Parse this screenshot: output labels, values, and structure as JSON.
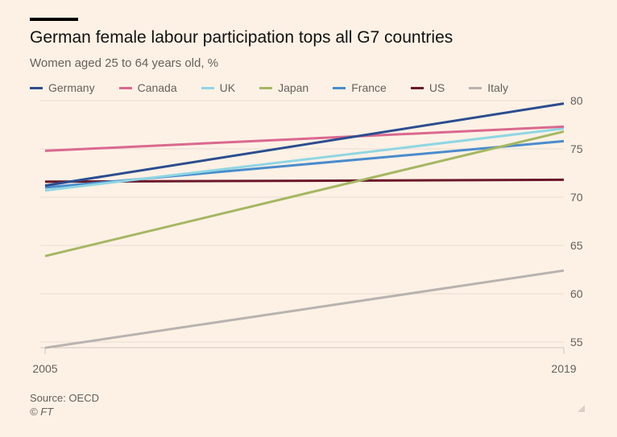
{
  "chart_data": {
    "type": "line",
    "title": "German female labour participation tops all G7 countries",
    "subtitle": "Women aged 25 to 64 years old, %",
    "x": [
      2005,
      2019
    ],
    "x_tick_labels": [
      "2005",
      "2019"
    ],
    "y_ticks": [
      55,
      60,
      65,
      70,
      75,
      80
    ],
    "ylim": [
      54.4,
      80
    ],
    "grid": true,
    "legend_position": "top",
    "series": [
      {
        "name": "Germany",
        "color": "#2b4d8f",
        "values": [
          71.2,
          79.7
        ]
      },
      {
        "name": "Canada",
        "color": "#d9698f",
        "values": [
          74.8,
          77.3
        ]
      },
      {
        "name": "UK",
        "color": "#8fd6e3",
        "values": [
          70.7,
          77.1
        ]
      },
      {
        "name": "Japan",
        "color": "#a5b763",
        "values": [
          63.9,
          76.8
        ]
      },
      {
        "name": "France",
        "color": "#4a8ccc",
        "values": [
          71.0,
          75.8
        ]
      },
      {
        "name": "US",
        "color": "#6b1729",
        "values": [
          71.6,
          71.8
        ]
      },
      {
        "name": "Italy",
        "color": "#b8b3b0",
        "values": [
          54.4,
          62.4
        ]
      }
    ],
    "source": "Source: OECD",
    "copyright": "© FT"
  }
}
